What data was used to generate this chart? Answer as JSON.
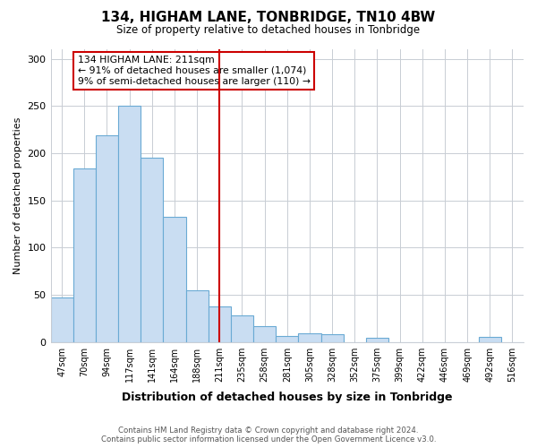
{
  "title": "134, HIGHAM LANE, TONBRIDGE, TN10 4BW",
  "subtitle": "Size of property relative to detached houses in Tonbridge",
  "xlabel": "Distribution of detached houses by size in Tonbridge",
  "ylabel": "Number of detached properties",
  "footer_line1": "Contains HM Land Registry data © Crown copyright and database right 2024.",
  "footer_line2": "Contains public sector information licensed under the Open Government Licence v3.0.",
  "bar_labels": [
    "47sqm",
    "70sqm",
    "94sqm",
    "117sqm",
    "141sqm",
    "164sqm",
    "188sqm",
    "211sqm",
    "235sqm",
    "258sqm",
    "281sqm",
    "305sqm",
    "328sqm",
    "352sqm",
    "375sqm",
    "399sqm",
    "422sqm",
    "446sqm",
    "469sqm",
    "492sqm",
    "516sqm"
  ],
  "bar_values": [
    47,
    184,
    219,
    250,
    195,
    133,
    55,
    38,
    28,
    17,
    6,
    9,
    8,
    0,
    4,
    0,
    0,
    0,
    0,
    5,
    0
  ],
  "bar_color": "#c9ddf2",
  "bar_edge_color": "#6aaad4",
  "vline_x_index": 7,
  "vline_color": "#cc0000",
  "annotation_title": "134 HIGHAM LANE: 211sqm",
  "annotation_line1": "← 91% of detached houses are smaller (1,074)",
  "annotation_line2": "9% of semi-detached houses are larger (110) →",
  "annotation_box_edge": "#cc0000",
  "ylim": [
    0,
    310
  ],
  "yticks": [
    0,
    50,
    100,
    150,
    200,
    250,
    300
  ],
  "background_color": "#ffffff",
  "grid_color": "#c8cdd4"
}
